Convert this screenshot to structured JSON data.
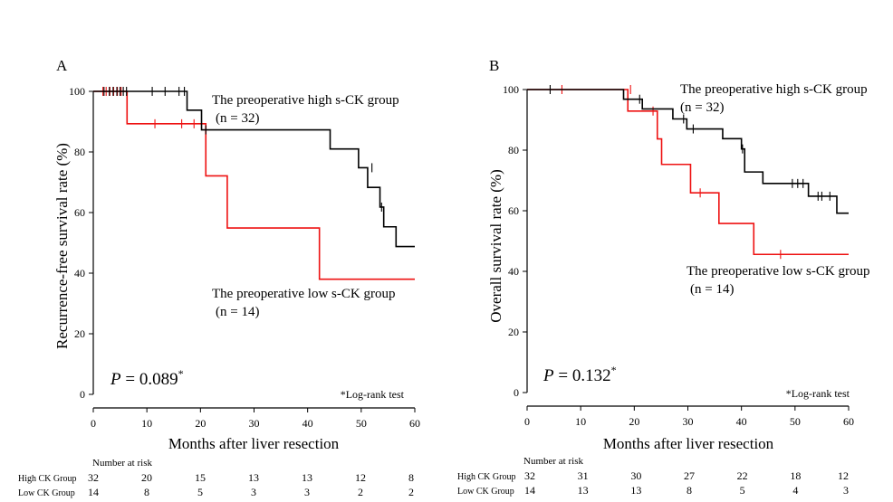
{
  "colors": {
    "high": "#000000",
    "low": "#ee1111"
  },
  "chart_data": [
    {
      "type": "line",
      "title": "A",
      "xlabel": "Months after liver resection",
      "ylabel": "Recurrence-free survival rate (%)",
      "xlim": [
        0,
        60
      ],
      "ylim": [
        0,
        100
      ],
      "xticks": [
        "0",
        "10",
        "20",
        "30",
        "40",
        "50",
        "60"
      ],
      "yticks": [
        "0",
        "20",
        "40",
        "60",
        "80",
        "100"
      ],
      "grid": false,
      "p_prefix": "P",
      "p_value": " = 0.089",
      "p_star": "*",
      "note": "*Log-rank test",
      "series": [
        {
          "name": "The preoperative high s-CK group",
          "n_label": "(n = 32)",
          "color": "#000000",
          "steps": [
            [
              0,
              100
            ],
            [
              17.5,
              100
            ],
            [
              17.5,
              93.8
            ],
            [
              20.2,
              93.8
            ],
            [
              20.2,
              87.3
            ],
            [
              44.2,
              87.3
            ],
            [
              44.2,
              81
            ],
            [
              49.5,
              81
            ],
            [
              49.5,
              74.8
            ],
            [
              51.2,
              74.8
            ],
            [
              51.2,
              68.3
            ],
            [
              53.5,
              68.3
            ],
            [
              53.5,
              61.8
            ],
            [
              54.2,
              61.8
            ],
            [
              54.2,
              55.3
            ],
            [
              56.5,
              55.3
            ],
            [
              56.5,
              48.8
            ],
            [
              60,
              48.8
            ]
          ],
          "censors": [
            [
              2,
              100
            ],
            [
              3,
              100
            ],
            [
              3.7,
              100
            ],
            [
              4.4,
              100
            ],
            [
              5,
              100
            ],
            [
              5.6,
              100
            ],
            [
              6.2,
              100
            ],
            [
              11,
              100
            ],
            [
              13.4,
              100
            ],
            [
              16,
              100
            ],
            [
              17,
              100
            ],
            [
              21,
              87.3
            ],
            [
              52,
              74.8
            ],
            [
              53.8,
              61.8
            ]
          ]
        },
        {
          "name": "The preoperative low s-CK group",
          "n_label": "(n = 14)",
          "color": "#ee1111",
          "steps": [
            [
              0,
              100
            ],
            [
              6.3,
              100
            ],
            [
              6.3,
              89.3
            ],
            [
              21,
              89.3
            ],
            [
              21,
              72.1
            ],
            [
              25,
              72.1
            ],
            [
              25,
              54.9
            ],
            [
              42.2,
              54.9
            ],
            [
              42.2,
              38
            ],
            [
              60,
              38
            ]
          ],
          "censors": [
            [
              1.8,
              100
            ],
            [
              2.4,
              100
            ],
            [
              3.1,
              100
            ],
            [
              3.8,
              100
            ],
            [
              4.5,
              100
            ],
            [
              5.2,
              100
            ],
            [
              11.5,
              89.3
            ],
            [
              16.5,
              89.3
            ],
            [
              18.8,
              89.3
            ]
          ]
        }
      ],
      "risk_table": {
        "header": "Number at risk",
        "times": [
          0,
          10,
          20,
          30,
          40,
          50,
          60
        ],
        "rows": [
          {
            "label": "High CK Group",
            "values": [
              "32",
              "20",
              "15",
              "13",
              "13",
              "12",
              "8"
            ]
          },
          {
            "label": "Low CK Group",
            "values": [
              "14",
              "8",
              "5",
              "3",
              "3",
              "2",
              "2"
            ]
          }
        ]
      }
    },
    {
      "type": "line",
      "title": "B",
      "xlabel": "Months after liver resection",
      "ylabel": "Overall survival rate (%)",
      "xlim": [
        0,
        60
      ],
      "ylim": [
        0,
        100
      ],
      "xticks": [
        "0",
        "10",
        "20",
        "30",
        "40",
        "50",
        "60"
      ],
      "yticks": [
        "0",
        "20",
        "40",
        "60",
        "80",
        "100"
      ],
      "grid": false,
      "p_prefix": "P",
      "p_value": " = 0.132",
      "p_star": "*",
      "note": "*Log-rank test",
      "series": [
        {
          "name": "The preoperative high s-CK group",
          "n_label": "(n = 32)",
          "color": "#000000",
          "steps": [
            [
              0,
              100
            ],
            [
              18,
              100
            ],
            [
              18,
              96.8
            ],
            [
              21.5,
              96.8
            ],
            [
              21.5,
              93.6
            ],
            [
              27.2,
              93.6
            ],
            [
              27.2,
              90.3
            ],
            [
              29.8,
              90.3
            ],
            [
              29.8,
              87
            ],
            [
              36.5,
              87
            ],
            [
              36.5,
              83.8
            ],
            [
              40,
              83.8
            ],
            [
              40,
              80.4
            ],
            [
              40.6,
              80.4
            ],
            [
              40.6,
              72.8
            ],
            [
              44,
              72.8
            ],
            [
              44,
              69
            ],
            [
              52.5,
              69
            ],
            [
              52.5,
              64.8
            ],
            [
              57.8,
              64.8
            ],
            [
              57.8,
              59.2
            ],
            [
              60,
              59.2
            ]
          ],
          "censors": [
            [
              4.3,
              100
            ],
            [
              21,
              96.8
            ],
            [
              29.2,
              90.3
            ],
            [
              31,
              87
            ],
            [
              40.2,
              80.4
            ],
            [
              49.5,
              69
            ],
            [
              50.5,
              69
            ],
            [
              51.5,
              69
            ],
            [
              54.3,
              64.8
            ],
            [
              55,
              64.8
            ],
            [
              56.5,
              64.8
            ]
          ]
        },
        {
          "name": "The preoperative low s-CK group",
          "n_label": "(n = 14)",
          "color": "#ee1111",
          "steps": [
            [
              0,
              100
            ],
            [
              18.8,
              100
            ],
            [
              18.8,
              92.9
            ],
            [
              24.3,
              92.9
            ],
            [
              24.3,
              83.7
            ],
            [
              25.1,
              83.7
            ],
            [
              25.1,
              75.3
            ],
            [
              30.5,
              75.3
            ],
            [
              30.5,
              65.9
            ],
            [
              35.8,
              65.9
            ],
            [
              35.8,
              55.8
            ],
            [
              42.3,
              55.8
            ],
            [
              42.3,
              45.6
            ],
            [
              60,
              45.6
            ]
          ],
          "censors": [
            [
              6.5,
              100
            ],
            [
              19.3,
              100
            ],
            [
              23.5,
              92.9
            ],
            [
              32.3,
              65.9
            ],
            [
              47.3,
              45.6
            ]
          ]
        }
      ],
      "risk_table": {
        "header": "Number at risk",
        "times": [
          0,
          10,
          20,
          30,
          40,
          50,
          60
        ],
        "rows": [
          {
            "label": "High CK Group",
            "values": [
              "32",
              "31",
              "30",
              "27",
              "22",
              "18",
              "12"
            ]
          },
          {
            "label": "Low CK Group",
            "values": [
              "14",
              "13",
              "13",
              "8",
              "5",
              "4",
              "3"
            ]
          }
        ]
      }
    }
  ]
}
